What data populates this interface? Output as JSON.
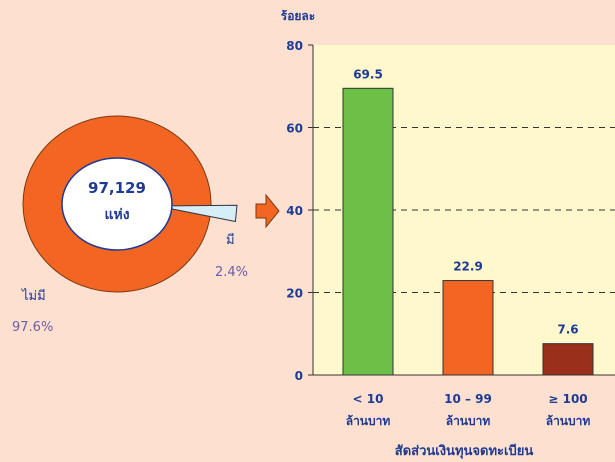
{
  "colors": {
    "background": "#fde0cf",
    "donut": "#f26522",
    "pie_slice": "#d6eef8",
    "center_fill": "#ffffff",
    "center_stroke": "#1f3a93",
    "center_text": "#1f3a93",
    "plot_bg": "#fff8cc",
    "label_text": "#1f3a93",
    "pct_text": "#6a5ea8",
    "arrow": "#f26522"
  },
  "chart_data": [
    {
      "type": "pie",
      "center_value": "97,129",
      "center_unit": "แห่ง",
      "slices": [
        {
          "label": "ไม่มี",
          "percent_label": "97.6%",
          "value": 97.6,
          "color": "#f26522"
        },
        {
          "label": "มี",
          "percent_label": "2.4%",
          "value": 2.4,
          "color": "#d6eef8"
        }
      ]
    },
    {
      "type": "bar",
      "ylabel": "ร้อยละ",
      "xlabel": "สัดส่วนเงินทุนจดทะเบียน",
      "ylim": [
        0,
        80
      ],
      "yticks": [
        "0",
        "20",
        "40",
        "60",
        "80"
      ],
      "grid": true,
      "categories": [
        {
          "line1": "< 10",
          "line2": "ล้านบาท"
        },
        {
          "line1": "10 – 99",
          "line2": "ล้านบาท"
        },
        {
          "line1": "≥ 100",
          "line2": "ล้านบาท"
        }
      ],
      "values": [
        69.5,
        22.9,
        7.6
      ],
      "value_labels": [
        "69.5",
        "22.9",
        "7.6"
      ],
      "bar_colors": [
        "#6cbf47",
        "#f26522",
        "#9a2f1c"
      ]
    }
  ]
}
